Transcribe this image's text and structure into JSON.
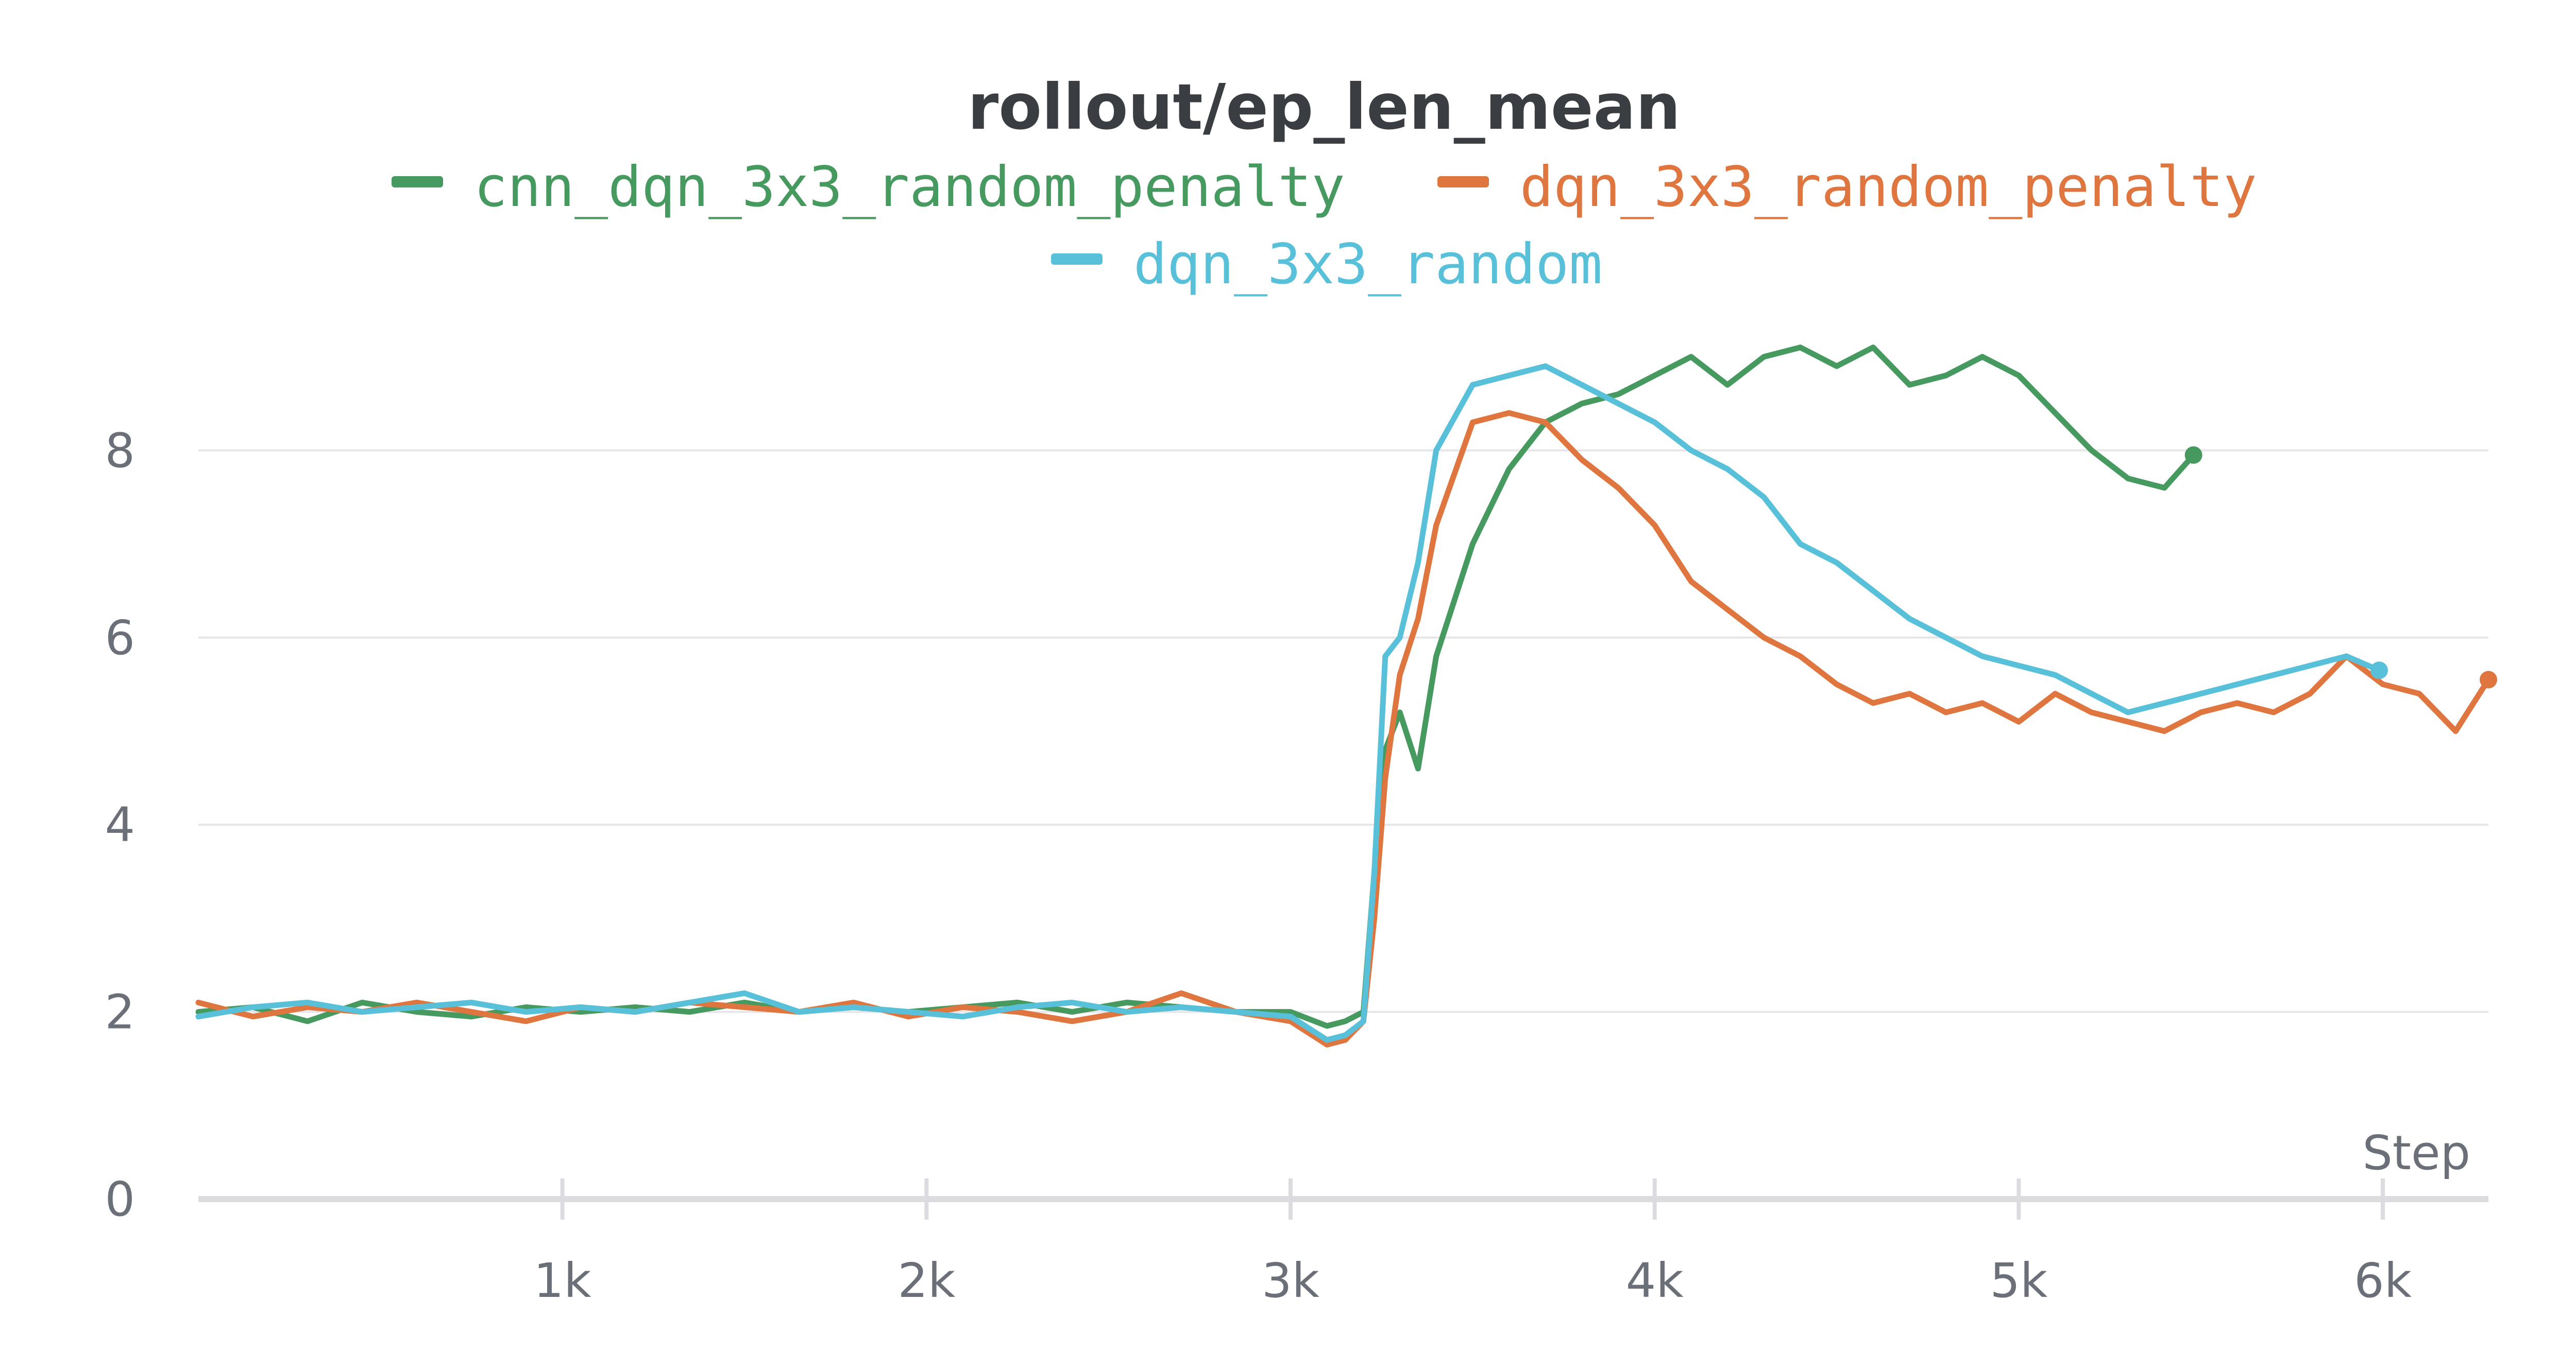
{
  "chart_data": {
    "type": "line",
    "title": "rollout/ep_len_mean",
    "xlabel": "Step",
    "ylabel": "",
    "xlim": [
      0,
      6290
    ],
    "ylim": [
      0,
      9.4
    ],
    "x_ticks": [
      {
        "value": 1000,
        "label": "1k"
      },
      {
        "value": 2000,
        "label": "2k"
      },
      {
        "value": 3000,
        "label": "3k"
      },
      {
        "value": 4000,
        "label": "4k"
      },
      {
        "value": 5000,
        "label": "5k"
      },
      {
        "value": 6000,
        "label": "6k"
      }
    ],
    "y_ticks": [
      {
        "value": 0,
        "label": "0"
      },
      {
        "value": 2,
        "label": "2"
      },
      {
        "value": 4,
        "label": "4"
      },
      {
        "value": 6,
        "label": "6"
      },
      {
        "value": 8,
        "label": "8"
      }
    ],
    "grid": true,
    "legend_position": "top-center",
    "series": [
      {
        "name": "cnn_dqn_3x3_random_penalty",
        "color": "#479a5f",
        "x": [
          0,
          150,
          300,
          450,
          600,
          750,
          900,
          1050,
          1200,
          1350,
          1500,
          1650,
          1800,
          1950,
          2100,
          2250,
          2400,
          2550,
          2700,
          2850,
          3000,
          3100,
          3150,
          3200,
          3230,
          3260,
          3300,
          3350,
          3400,
          3500,
          3600,
          3700,
          3800,
          3900,
          4000,
          4100,
          4200,
          4300,
          4400,
          4500,
          4600,
          4700,
          4800,
          4900,
          5000,
          5100,
          5200,
          5300,
          5400,
          5480
        ],
        "y": [
          2.0,
          2.05,
          1.9,
          2.1,
          2.0,
          1.95,
          2.05,
          2.0,
          2.05,
          2.0,
          2.1,
          2.0,
          2.05,
          2.0,
          2.05,
          2.1,
          2.0,
          2.1,
          2.05,
          2.0,
          2.0,
          1.85,
          1.9,
          2.0,
          3.5,
          4.8,
          5.2,
          4.6,
          5.8,
          7.0,
          7.8,
          8.3,
          8.5,
          8.6,
          8.8,
          9.0,
          8.7,
          9.0,
          9.1,
          8.9,
          9.1,
          8.7,
          8.8,
          9.0,
          8.8,
          8.4,
          8.0,
          7.7,
          7.6,
          7.95
        ]
      },
      {
        "name": "dqn_3x3_random_penalty",
        "color": "#e0763f",
        "x": [
          0,
          150,
          300,
          450,
          600,
          750,
          900,
          1050,
          1200,
          1350,
          1500,
          1650,
          1800,
          1950,
          2100,
          2250,
          2400,
          2550,
          2700,
          2850,
          3000,
          3100,
          3150,
          3200,
          3230,
          3260,
          3300,
          3350,
          3400,
          3500,
          3600,
          3700,
          3800,
          3900,
          4000,
          4100,
          4200,
          4300,
          4400,
          4500,
          4600,
          4700,
          4800,
          4900,
          5000,
          5100,
          5200,
          5300,
          5400,
          5500,
          5600,
          5700,
          5800,
          5900,
          6000,
          6100,
          6200,
          6290
        ],
        "y": [
          2.1,
          1.95,
          2.05,
          2.0,
          2.1,
          2.0,
          1.9,
          2.05,
          2.0,
          2.1,
          2.05,
          2.0,
          2.1,
          1.95,
          2.05,
          2.0,
          1.9,
          2.0,
          2.2,
          2.0,
          1.9,
          1.65,
          1.7,
          1.9,
          3.0,
          4.5,
          5.6,
          6.2,
          7.2,
          8.3,
          8.4,
          8.3,
          7.9,
          7.6,
          7.2,
          6.6,
          6.3,
          6.0,
          5.8,
          5.5,
          5.3,
          5.4,
          5.2,
          5.3,
          5.1,
          5.4,
          5.2,
          5.1,
          5.0,
          5.2,
          5.3,
          5.2,
          5.4,
          5.8,
          5.5,
          5.4,
          5.0,
          5.55
        ]
      },
      {
        "name": "dqn_3x3_random",
        "color": "#58c1d9",
        "x": [
          0,
          150,
          300,
          450,
          600,
          750,
          900,
          1050,
          1200,
          1350,
          1500,
          1650,
          1800,
          1950,
          2100,
          2250,
          2400,
          2550,
          2700,
          2850,
          3000,
          3100,
          3150,
          3200,
          3230,
          3260,
          3300,
          3350,
          3400,
          3500,
          3600,
          3700,
          3800,
          3900,
          4000,
          4100,
          4200,
          4300,
          4400,
          4500,
          4600,
          4700,
          4800,
          4900,
          5000,
          5100,
          5200,
          5300,
          5400,
          5500,
          5600,
          5700,
          5800,
          5900,
          5990
        ],
        "y": [
          1.95,
          2.05,
          2.1,
          2.0,
          2.05,
          2.1,
          2.0,
          2.05,
          2.0,
          2.1,
          2.2,
          2.0,
          2.05,
          2.0,
          1.95,
          2.05,
          2.1,
          2.0,
          2.05,
          2.0,
          1.95,
          1.7,
          1.75,
          1.9,
          3.5,
          5.8,
          6.0,
          6.8,
          8.0,
          8.7,
          8.8,
          8.9,
          8.7,
          8.5,
          8.3,
          8.0,
          7.8,
          7.5,
          7.0,
          6.8,
          6.5,
          6.2,
          6.0,
          5.8,
          5.7,
          5.6,
          5.4,
          5.2,
          5.3,
          5.4,
          5.5,
          5.6,
          5.7,
          5.8,
          5.65
        ]
      }
    ]
  }
}
